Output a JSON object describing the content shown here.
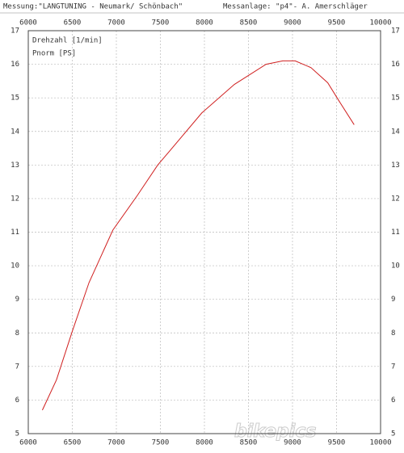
{
  "chart_data": {
    "type": "line",
    "title": "Messung:\"LANGTUNING - Neumark/ Schönbach\"",
    "subtitle": "Messanlage: \"p4\"- A. Amerschläger",
    "x_label": "Drehzahl [1/min]",
    "y_label": "Pnorm [PS]",
    "watermark": "bikepics",
    "x": [
      6160,
      6320,
      6500,
      6690,
      6960,
      7240,
      7470,
      7600,
      7970,
      8340,
      8700,
      8890,
      9030,
      9210,
      9400,
      9530,
      9700
    ],
    "series": [
      {
        "name": "Pnorm [PS]",
        "color": "#d02020",
        "values": [
          5.7,
          6.6,
          8.05,
          9.5,
          11.06,
          12.1,
          13.0,
          13.4,
          14.55,
          15.4,
          16.0,
          16.1,
          16.1,
          15.9,
          15.45,
          14.9,
          14.2
        ]
      }
    ],
    "xlim": [
      6000,
      10000
    ],
    "xticks": [
      6000,
      6500,
      7000,
      7500,
      8000,
      8500,
      9000,
      9500,
      10000
    ],
    "ylim": [
      5,
      17
    ],
    "yticks": [
      5,
      6,
      7,
      8,
      9,
      10,
      11,
      12,
      13,
      14,
      15,
      16,
      17
    ],
    "grid": true
  }
}
